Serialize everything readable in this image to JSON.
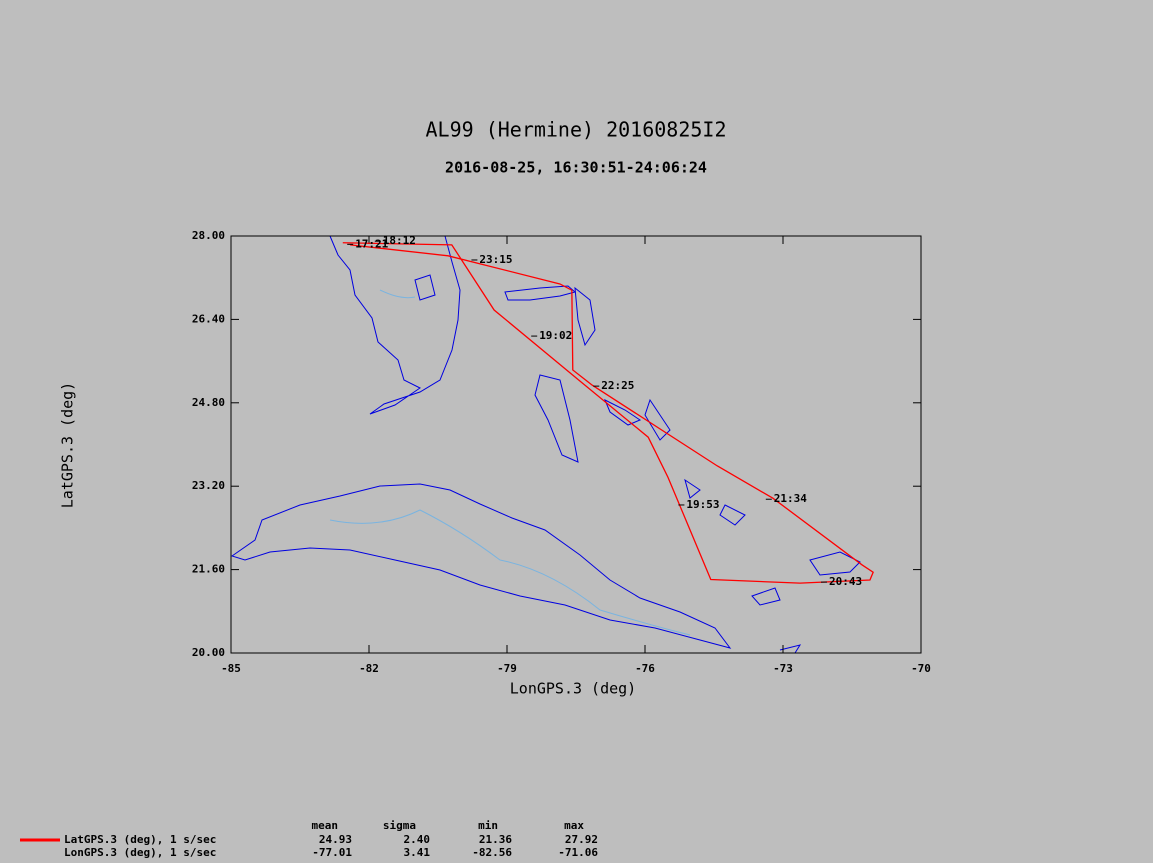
{
  "chart_data": {
    "type": "line",
    "title": "AL99 (Hermine) 20160825I2",
    "subtitle": "2016-08-25, 16:30:51-24:06:24",
    "x_label": "LonGPS.3 (deg)",
    "y_label": "LatGPS.3 (deg)",
    "xlim": [
      -85,
      -70
    ],
    "xticks": [
      -85,
      -82,
      -79,
      -76,
      -73,
      -70
    ],
    "ylim": [
      20,
      28
    ],
    "yticks": [
      {
        "value": 20,
        "label": "20.00"
      },
      {
        "value": 21.6,
        "label": "21.60"
      },
      {
        "value": 23.2,
        "label": "23.20"
      },
      {
        "value": 24.8,
        "label": "24.80"
      },
      {
        "value": 26.4,
        "label": "26.40"
      },
      {
        "value": 28,
        "label": "28.00"
      }
    ],
    "series": [
      {
        "color": "#ff0000",
        "x": [
          -82.57,
          -80.2,
          -79.28,
          -77.57,
          -75.93,
          -75.5,
          -74.57,
          -72.63,
          -71.11,
          -71.04,
          -71.28,
          -73.22,
          -74.43,
          -77.15,
          -77.57,
          -77.59,
          -77.85,
          -80.28,
          -82.41
        ],
        "values": [
          27.87,
          27.83,
          26.58,
          25.33,
          24.14,
          23.37,
          21.41,
          21.34,
          21.4,
          21.55,
          21.69,
          22.97,
          23.59,
          25.14,
          25.43,
          26.96,
          27.08,
          27.62,
          27.83
        ]
      }
    ],
    "annotations": [
      {
        "label": "17:21",
        "x": -82.3,
        "y": 27.84
      },
      {
        "label": "18:12",
        "x": -81.7,
        "y": 27.9
      },
      {
        "label": "23:15",
        "x": -79.6,
        "y": 27.54
      },
      {
        "label": "19:02",
        "x": -78.3,
        "y": 26.08
      },
      {
        "label": "22:25",
        "x": -76.95,
        "y": 25.12
      },
      {
        "label": "21:34",
        "x": -73.2,
        "y": 22.95
      },
      {
        "label": "19:53",
        "x": -75.1,
        "y": 22.84
      },
      {
        "label": "20:43",
        "x": -72.0,
        "y": 21.36
      }
    ],
    "stats": {
      "columns": [
        "mean",
        "sigma",
        "min",
        "max"
      ],
      "rows": [
        {
          "name": "LatGPS.3 (deg), 1 s/sec",
          "values": [
            "24.93",
            "2.40",
            "21.36",
            "27.92"
          ]
        },
        {
          "name": "LonGPS.3 (deg), 1 s/sec",
          "values": [
            "-77.01",
            "3.41",
            "-82.56",
            "-71.06"
          ]
        }
      ]
    }
  }
}
